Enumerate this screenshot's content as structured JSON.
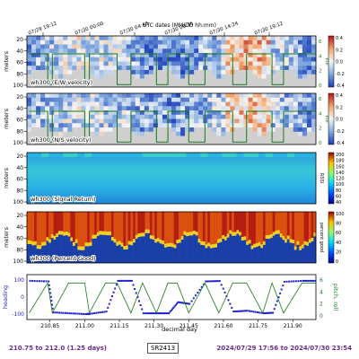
{
  "figure": {
    "top_axis_title": "UTC dates (MM/DD hh:mm)",
    "top_ticks": [
      "07/29 19:12",
      "07/30 00:00",
      "07/30 04:48",
      "07/30 09:36",
      "07/30 14:24",
      "07/30 19:12"
    ],
    "x_axis_label": "decimal day",
    "x_ticks": [
      "210.85",
      "211.00",
      "211.15",
      "211.30",
      "211.45",
      "211.60",
      "211.75",
      "211.90"
    ],
    "colors": {
      "accent_text": "#6b2a8c",
      "heading_line": "#1f1fcc",
      "pitch_roll_line": "#1b7a1b",
      "nodata": "#cfcfcf"
    }
  },
  "chart_data": [
    {
      "type": "heatmap",
      "panel_label": "wh300 (E/W velocity)",
      "ylabel": "meters",
      "y_ticks": [
        "20",
        "40",
        "60",
        "80",
        "100"
      ],
      "colormap": "diverging",
      "colorbar_ticks": [
        "0.4",
        "0.2",
        "0.0",
        "-0.2",
        "-0.4"
      ],
      "clim": [
        -0.4,
        0.4
      ],
      "overlay": {
        "right_ticks": [
          "6",
          "4",
          "2",
          "0"
        ],
        "right_label": "kts"
      }
    },
    {
      "type": "heatmap",
      "panel_label": "wh300 (N/S velocity)",
      "ylabel": "meters",
      "y_ticks": [
        "20",
        "40",
        "60",
        "80",
        "100"
      ],
      "colormap": "diverging",
      "colorbar_ticks": [
        "0.4",
        "0.2",
        "0.0",
        "-0.2",
        "-0.4"
      ],
      "clim": [
        -0.4,
        0.4
      ],
      "overlay": {
        "right_ticks": [
          "6",
          "4",
          "2",
          "0"
        ],
        "right_label": "kts"
      }
    },
    {
      "type": "heatmap",
      "panel_label": "wh300 (Signal Return)",
      "ylabel": "meters",
      "y_ticks": [
        "20",
        "40",
        "60",
        "80",
        "100"
      ],
      "colormap": "sequential",
      "colorbar_ticks": [
        "200",
        "180",
        "160",
        "140",
        "120",
        "100",
        "80",
        "60",
        "40"
      ],
      "colorbar_label": "RSSI",
      "clim": [
        40,
        200
      ]
    },
    {
      "type": "heatmap",
      "panel_label": "wh300 (Percent Good)",
      "ylabel": "meters",
      "y_ticks": [
        "20",
        "40",
        "60",
        "80",
        "100"
      ],
      "colormap": "sequential",
      "colorbar_ticks": [
        "100",
        "80",
        "60",
        "40",
        "20",
        "0"
      ],
      "colorbar_label": "percent good",
      "clim": [
        0,
        100
      ]
    },
    {
      "type": "line",
      "ylabel": "heading",
      "y_ticks": [
        "100",
        "0",
        "-100"
      ],
      "right_label": "pitch, roll",
      "right_ticks": [
        "6",
        "4",
        "2",
        "0"
      ],
      "x": [
        210.76,
        210.84,
        210.86,
        210.93,
        211.0,
        211.02,
        211.09,
        211.14,
        211.2,
        211.25,
        211.31,
        211.36,
        211.4,
        211.45,
        211.52,
        211.58,
        211.64,
        211.7,
        211.77,
        211.81,
        211.86,
        211.94,
        212.0
      ],
      "series": [
        {
          "values": [
            95,
            92,
            -90,
            -95,
            -100,
            -98,
            -85,
            95,
            95,
            -95,
            -95,
            -95,
            -30,
            -40,
            92,
            94,
            -85,
            -80,
            -95,
            -92,
            90,
            95,
            95
          ]
        },
        {
          "values": [
            0.5,
            5.5,
            0.5,
            5.5,
            5.5,
            0.5,
            5.5,
            5.5,
            0.5,
            5.5,
            0.5,
            5.5,
            5.5,
            0.5,
            5.5,
            0.5,
            5.5,
            5.5,
            0.5,
            5.5,
            0.5,
            5.5,
            5.5
          ]
        }
      ]
    }
  ],
  "footer": {
    "left": "210.75 to 212.0 (1.25 days)",
    "center": "SR2413",
    "right": "2024/07/29 17:56 to 2024/07/30 23:54"
  }
}
